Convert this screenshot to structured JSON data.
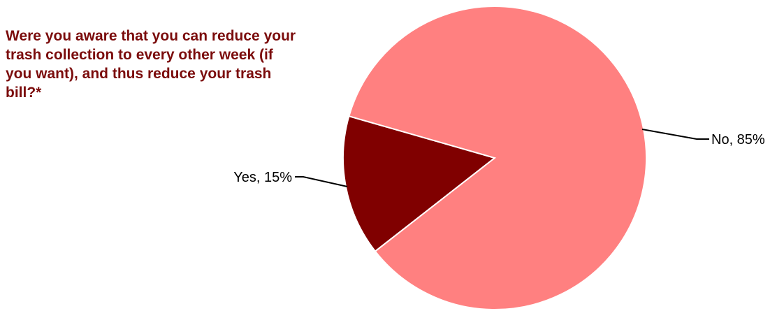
{
  "chart_data": {
    "type": "pie",
    "title": "Were you aware that you can reduce your trash collection to every other week (if you want), and thus reduce your trash bill?*",
    "slices": [
      {
        "name": "Yes",
        "value": 15,
        "label": "Yes, 15%",
        "color": "#800000"
      },
      {
        "name": "No",
        "value": 85,
        "label": "No, 85%",
        "color": "#ff8080"
      }
    ],
    "xlabel": "",
    "ylabel": "",
    "legend": "none"
  }
}
